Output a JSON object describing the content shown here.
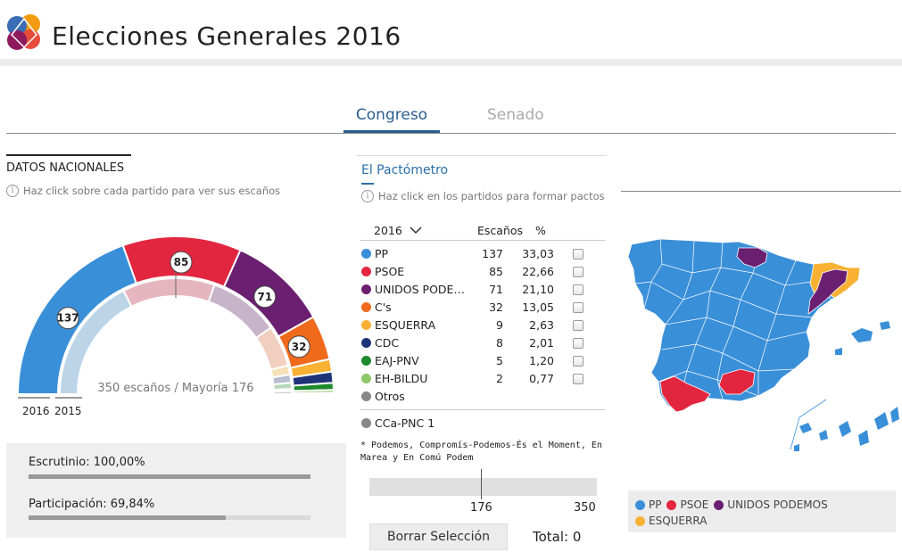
{
  "header": {
    "title": "Elecciones Generales 2016",
    "logo_colors": [
      "#f39c12",
      "#e74c3c",
      "#3a6db5",
      "#8e1a5e"
    ]
  },
  "tabs": [
    {
      "label": "Congreso",
      "active": true
    },
    {
      "label": "Senado",
      "active": false
    }
  ],
  "nacional": {
    "title": "DATOS NACIONALES",
    "hint": "Haz click sobre cada partido para ver sus escaños",
    "center_text": "350 escaños / Mayoría 176",
    "legend_2016": "2016",
    "legend_2015": "2015",
    "badges": [
      "137",
      "85",
      "71",
      "32"
    ],
    "seats_2015": [
      123,
      90,
      69,
      40,
      9,
      8,
      6,
      2,
      3
    ]
  },
  "stats": {
    "escrutinio_label": "Escrutinio: 100,00%",
    "escrutinio_value": 100,
    "participacion_label": "Participación: 69,84%",
    "participacion_value": 69.84
  },
  "pactometro": {
    "title": "El Pactómetro",
    "hint": "Haz click en los partidos para formar pactos",
    "year_select": "2016",
    "col_escanos": "Escaños",
    "col_pct": "%",
    "parties": [
      {
        "name": "PP",
        "seats": "137",
        "pct": "33,03",
        "color": "#3a8fd9"
      },
      {
        "name": "PSOE",
        "seats": "85",
        "pct": "22,66",
        "color": "#e3263f"
      },
      {
        "name": "UNIDOS PODEM…",
        "seats": "71",
        "pct": "21,10",
        "color": "#6b1f70"
      },
      {
        "name": "C's",
        "seats": "32",
        "pct": "13,05",
        "color": "#f06a1c"
      },
      {
        "name": "ESQUERRA",
        "seats": "9",
        "pct": "2,63",
        "color": "#f8b133"
      },
      {
        "name": "CDC",
        "seats": "8",
        "pct": "2,01",
        "color": "#1f3378"
      },
      {
        "name": "EAJ-PNV",
        "seats": "5",
        "pct": "1,20",
        "color": "#1e8a2e"
      },
      {
        "name": "EH-BILDU",
        "seats": "2",
        "pct": "0,77",
        "color": "#8ec86a"
      },
      {
        "name": "Otros",
        "seats": "",
        "pct": "",
        "color": "#888888"
      }
    ],
    "extra": {
      "name": "CCa-PNC 1",
      "color": "#888888"
    },
    "note": "* Podemos, Compromís-Podemos-És el Moment, En Marea y En Comú Podem",
    "slider_mid": "176",
    "slider_max": "350",
    "borrar": "Borrar Selección",
    "total": "Total: 0"
  },
  "map": {
    "colors": {
      "pp": "#3a8fd9",
      "psoe": "#e3263f",
      "up": "#6b1f70",
      "erc": "#f8b133"
    },
    "legend": [
      {
        "label": "PP",
        "color": "#3a8fd9"
      },
      {
        "label": "PSOE",
        "color": "#e3263f"
      },
      {
        "label": "UNIDOS PODEMOS",
        "color": "#6b1f70"
      },
      {
        "label": "ESQUERRA",
        "color": "#f8b133"
      }
    ]
  }
}
